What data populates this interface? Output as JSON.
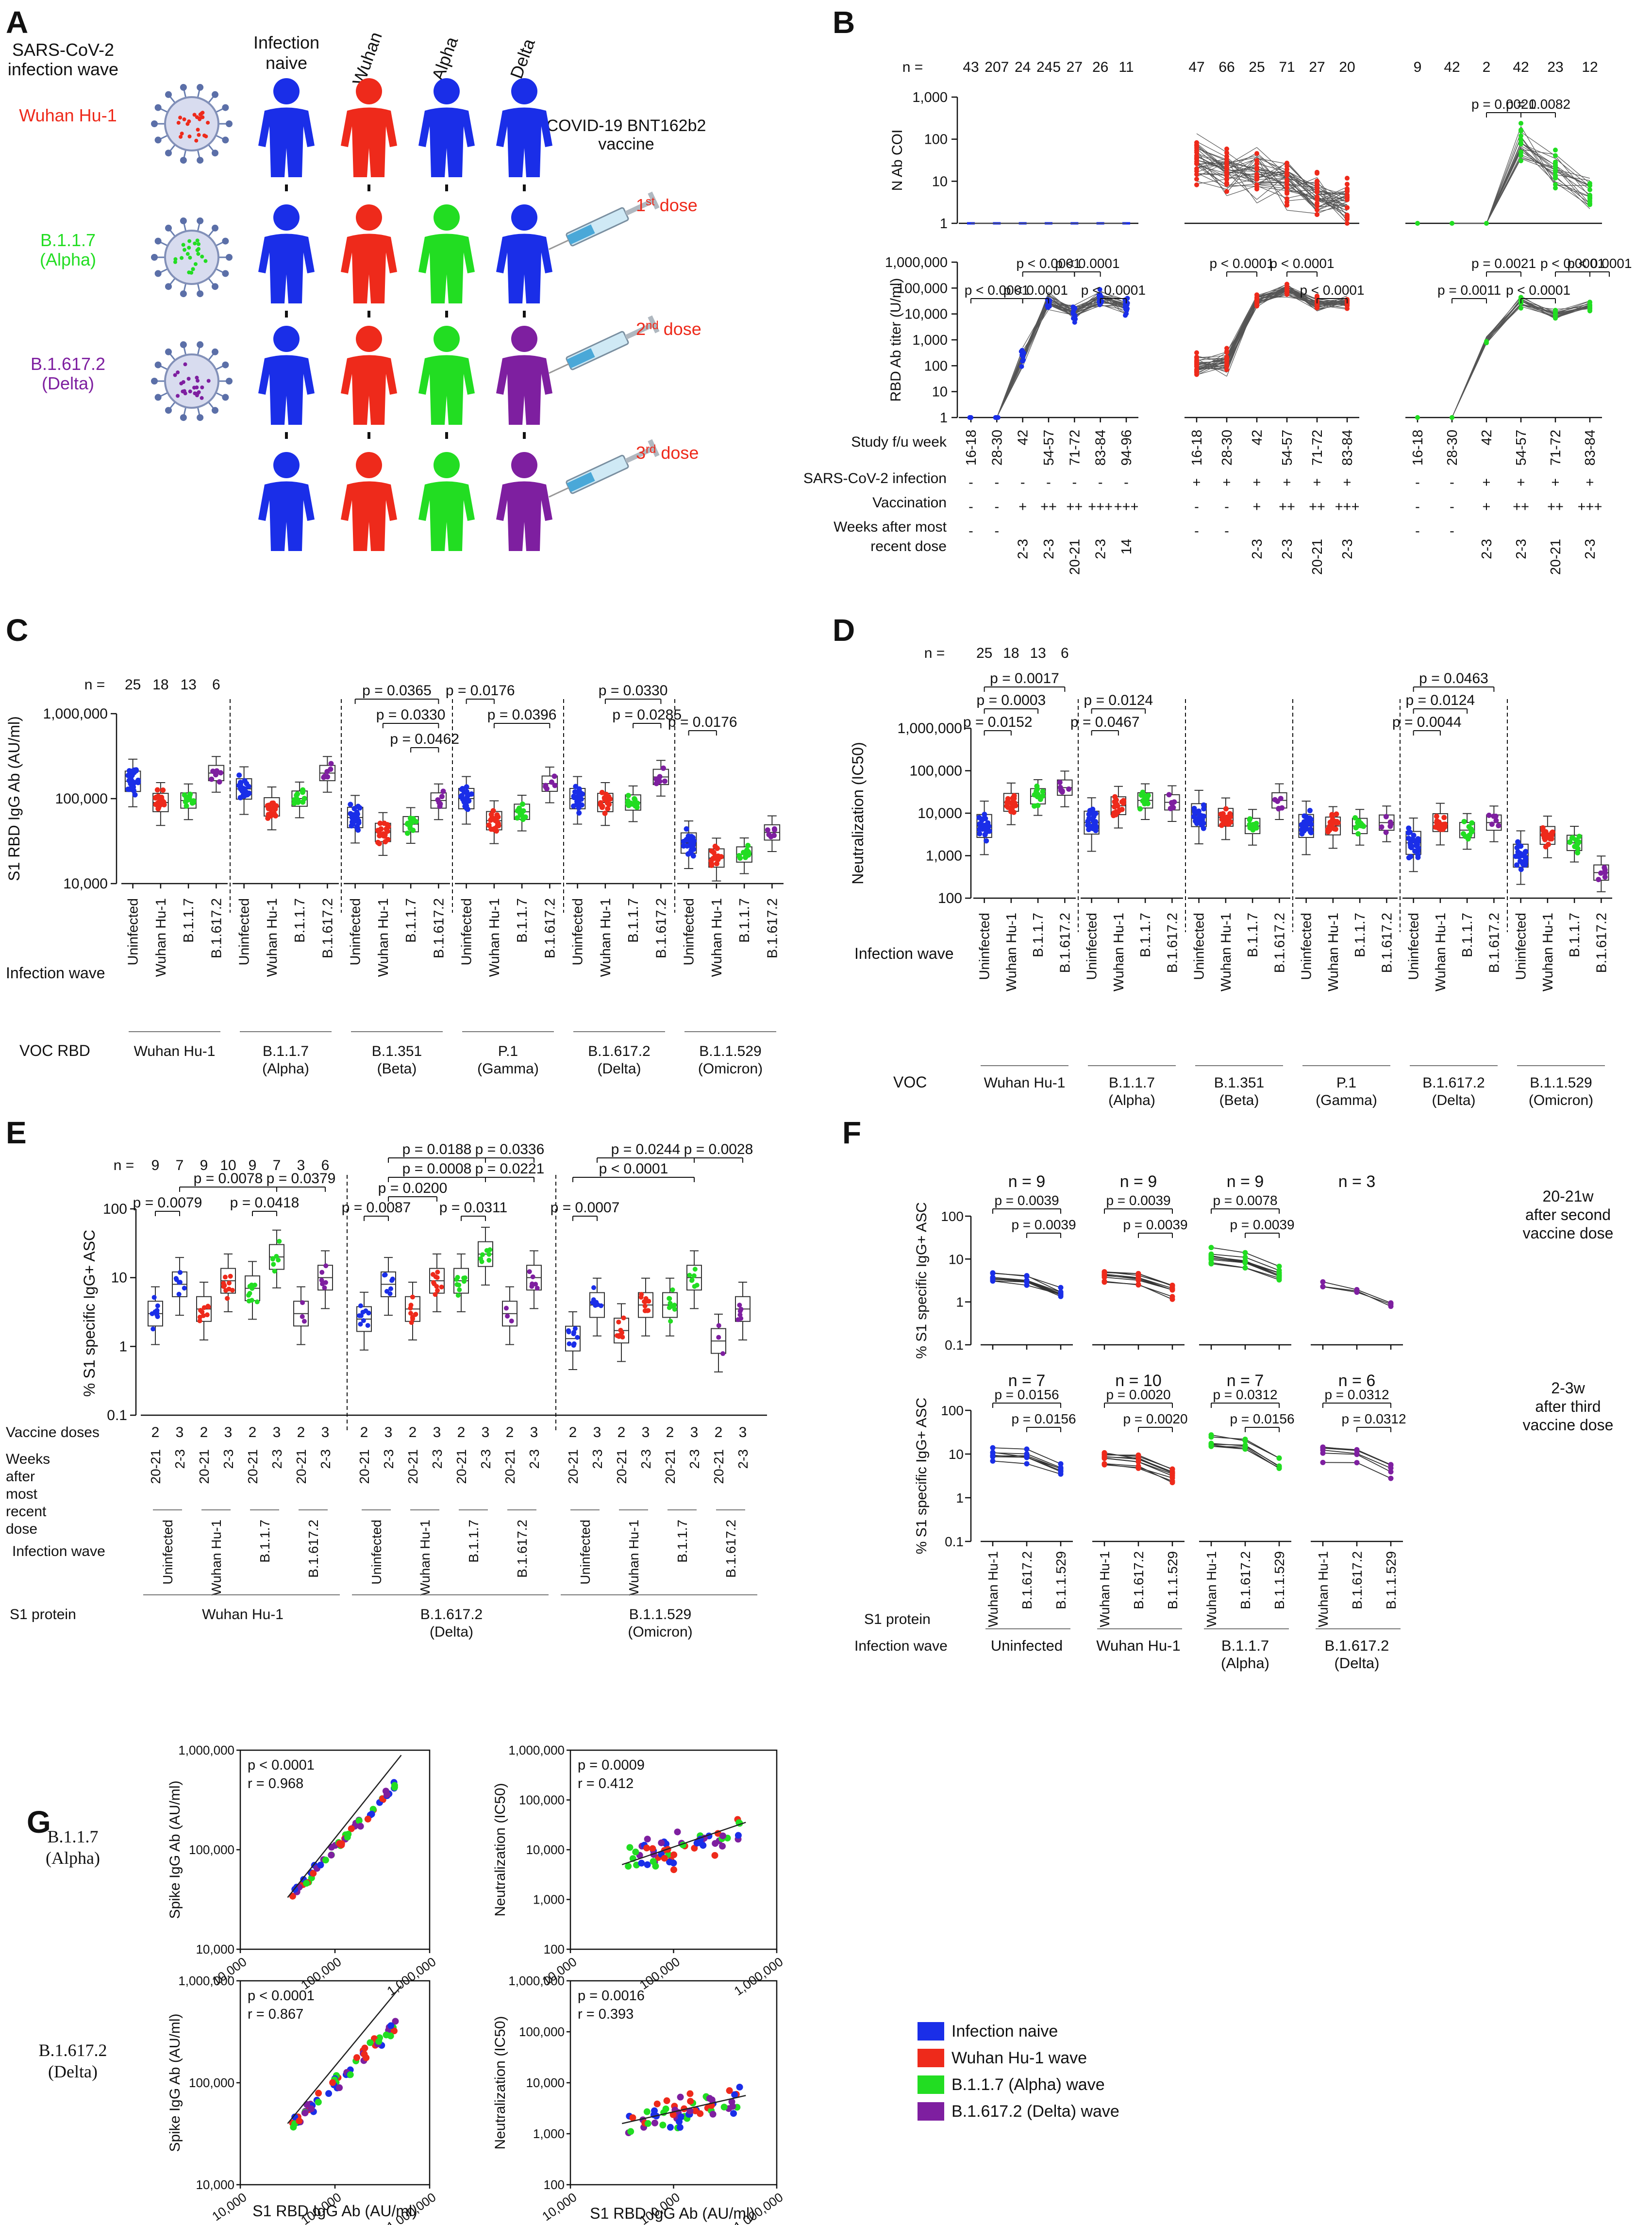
{
  "colors": {
    "naive": "#1a2ee8",
    "wuhan": "#ee2a1b",
    "alpha": "#22dd22",
    "delta": "#7e1fa0",
    "line": "#555555"
  },
  "panelA": {
    "letter": "A",
    "wave_header": "SARS-CoV-2\ninfection wave",
    "col_headers": [
      "Infection\nnaive",
      "Wuhan",
      "Alpha",
      "Delta"
    ],
    "vaccine_label": "COVID-19 BNT162b2\nvaccine",
    "variants": [
      {
        "name": "Wuhan Hu-1",
        "color": "#ee2a1b"
      },
      {
        "name": "B.1.1.7\n(Alpha)",
        "color": "#22dd22"
      },
      {
        "name": "B.1.617.2\n(Delta)",
        "color": "#7e1fa0"
      }
    ],
    "doses": [
      {
        "n": "1",
        "sup": "st",
        "text": " dose"
      },
      {
        "n": "2",
        "sup": "nd",
        "text": " dose"
      },
      {
        "n": "3",
        "sup": "rd",
        "text": " dose"
      }
    ],
    "icon_names": [
      "virus-icon",
      "person-icon",
      "syringe-icon"
    ]
  },
  "panelB": {
    "letter": "B",
    "n_label": "n =",
    "top_ylabel": "N Ab COI",
    "bottom_ylabel": "RBD Ab titer (U/ml)",
    "top_ticks": [
      "1,000",
      "100",
      "10",
      "1"
    ],
    "bottom_ticks": [
      "1,000,000",
      "100,000",
      "10,000",
      "1,000",
      "100",
      "10",
      "1"
    ],
    "row_labels": [
      "Study f/u week",
      "SARS-CoV-2 infection",
      "Vaccination",
      "Weeks after most\nrecent dose"
    ],
    "groups": [
      {
        "color": "#1a2ee8",
        "n": [
          "43",
          "207",
          "24",
          "245",
          "27",
          "26",
          "11"
        ],
        "weeks": [
          "16-18",
          "28-30",
          "42",
          "54-57",
          "71-72",
          "83-84",
          "94-96"
        ],
        "infection": [
          "-",
          "-",
          "-",
          "-",
          "-",
          "-",
          "-"
        ],
        "vaccination": [
          "-",
          "-",
          "+",
          "++",
          "++",
          "+++",
          "+++"
        ],
        "after": [
          "-",
          "-",
          "2-3",
          "2-3",
          "20-21",
          "2-3",
          "14"
        ],
        "top_pvals": [],
        "bottom_pvals": [
          "p < 0.0001",
          "p < 0.0001",
          "p < 0.0001",
          "p < 0.0001",
          "p < 0.0001"
        ]
      },
      {
        "color": "#ee2a1b",
        "n": [
          "47",
          "66",
          "25",
          "71",
          "27",
          "20"
        ],
        "weeks": [
          "16-18",
          "28-30",
          "42",
          "54-57",
          "71-72",
          "83-84"
        ],
        "infection": [
          "+",
          "+",
          "+",
          "+",
          "+",
          "+"
        ],
        "vaccination": [
          "-",
          "-",
          "+",
          "++",
          "++",
          "+++"
        ],
        "after": [
          "-",
          "-",
          "2-3",
          "2-3",
          "20-21",
          "2-3"
        ],
        "top_pvals": [],
        "bottom_pvals": [
          "p < 0.0001",
          "p < 0.0001",
          "p < 0.0001"
        ]
      },
      {
        "color": "#22dd22",
        "n": [
          "9",
          "42",
          "2",
          "42",
          "23",
          "12"
        ],
        "weeks": [
          "16-18",
          "28-30",
          "42",
          "54-57",
          "71-72",
          "83-84"
        ],
        "infection": [
          "-",
          "-",
          "+",
          "+",
          "+",
          "+"
        ],
        "vaccination": [
          "-",
          "-",
          "+",
          "++",
          "++",
          "+++"
        ],
        "after": [
          "-",
          "-",
          "2-3",
          "2-3",
          "20-21",
          "2-3"
        ],
        "top_pvals": [
          "p = 0.0021",
          "p = 0.0082"
        ],
        "bottom_pvals": [
          "p = 0.0021",
          "p < 0.0001",
          "p = 0.0011",
          "p < 0.0001",
          "p < 0.0001"
        ]
      }
    ]
  },
  "panelC": {
    "letter": "C",
    "ylabel": "S1 RBD IgG Ab (AU/ml)",
    "ticks": [
      "1,000,000",
      "100,000",
      "10,000"
    ],
    "n_label": "n =",
    "n": [
      "25",
      "18",
      "13",
      "6"
    ],
    "categories": [
      "Uninfected",
      "Wuhan Hu-1",
      "B.1.1.7",
      "B.1.617.2"
    ],
    "row_label": "Infection wave",
    "group_title": "VOC RBD",
    "groups": [
      "Wuhan Hu-1",
      "B.1.1.7\n(Alpha)",
      "B.1.351\n(Beta)",
      "P.1\n(Gamma)",
      "B.1.617.2\n(Delta)",
      "B.1.1.529\n(Omicron)"
    ],
    "pvals": [
      "p = 0.0365",
      "p = 0.0330",
      "p = 0.0462",
      "p = 0.0176",
      "p = 0.0396",
      "p = 0.0330",
      "p = 0.0285",
      "p = 0.0176"
    ]
  },
  "panelD": {
    "letter": "D",
    "ylabel": "Neutralization (IC50)",
    "ticks": [
      "1,000,000",
      "100,000",
      "10,000",
      "1,000",
      "100"
    ],
    "n_label": "n =",
    "n": [
      "25",
      "18",
      "13",
      "6"
    ],
    "categories": [
      "Uninfected",
      "Wuhan Hu-1",
      "B.1.1.7",
      "B.1.617.2"
    ],
    "row_label": "Infection wave",
    "group_title": "VOC",
    "groups": [
      "Wuhan Hu-1",
      "B.1.1.7\n(Alpha)",
      "B.1.351\n(Beta)",
      "P.1\n(Gamma)",
      "B.1.617.2\n(Delta)",
      "B.1.1.529\n(Omicron)"
    ],
    "pvals": [
      "p = 0.0017",
      "p = 0.0003",
      "p = 0.0152",
      "p = 0.0124",
      "p = 0.0467",
      "p = 0.0463",
      "p = 0.0124",
      "p = 0.0044"
    ]
  },
  "panelE": {
    "letter": "E",
    "ylabel": "% S1 specific IgG+ ASC",
    "ticks": [
      "100",
      "10",
      "1",
      "0.1"
    ],
    "n_label": "n =",
    "n": [
      "9",
      "7",
      "9",
      "10",
      "9",
      "7",
      "3",
      "6"
    ],
    "doses_label": "Vaccine doses",
    "doses": [
      "2",
      "3",
      "2",
      "3",
      "2",
      "3",
      "2",
      "3"
    ],
    "weeks_label": "Weeks\nafter\nmost\nrecent\ndose",
    "weeks": [
      "20-21",
      "2-3",
      "20-21",
      "2-3",
      "20-21",
      "2-3",
      "20-21",
      "2-3"
    ],
    "wave_label": "Infection wave",
    "waves": [
      "Uninfected",
      "Wuhan Hu-1",
      "B.1.1.7",
      "B.1.617.2"
    ],
    "protein_label": "S1 protein",
    "proteins": [
      "Wuhan Hu-1",
      "B.1.617.2\n(Delta)",
      "B.1.1.529\n(Omicron)"
    ],
    "pvals": [
      "p = 0.0078",
      "p = 0.0379",
      "p = 0.0079",
      "p = 0.0418",
      "p = 0.0188",
      "p = 0.0336",
      "p = 0.0008",
      "p = 0.0221",
      "p = 0.0200",
      "p = 0.0087",
      "p = 0.0311",
      "p = 0.0244",
      "p = 0.0028",
      "p < 0.0001",
      "p = 0.0007"
    ]
  },
  "panelF": {
    "letter": "F",
    "ylabel": "% S1 specific IgG+ ASC",
    "ticks": [
      "100",
      "10",
      "1",
      "0.1"
    ],
    "row_notes": [
      "20-21w\nafter second\nvaccine dose",
      "2-3w\nafter third\nvaccine dose"
    ],
    "top_n": [
      "n = 9",
      "n = 9",
      "n = 9",
      "n = 3"
    ],
    "bottom_n": [
      "n = 7",
      "n = 10",
      "n = 7",
      "n = 6"
    ],
    "top_pvals": [
      "p = 0.0039",
      "p = 0.0039",
      "p = 0.0039",
      "p = 0.0039",
      "p = 0.0078",
      "p = 0.0039"
    ],
    "bottom_pvals": [
      "p = 0.0156",
      "p = 0.0156",
      "p = 0.0020",
      "p = 0.0020",
      "p = 0.0312",
      "p = 0.0156",
      "p = 0.0312",
      "p = 0.0312"
    ],
    "protein_label": "S1 protein",
    "proteins": [
      "Wuhan Hu-1",
      "B.1.617.2",
      "B.1.1.529"
    ],
    "wave_label": "Infection wave",
    "waves": [
      "Uninfected",
      "Wuhan Hu-1",
      "B.1.1.7\n(Alpha)",
      "B.1.617.2\n(Delta)"
    ]
  },
  "panelG": {
    "letter": "G",
    "row_labels": [
      "B.1.1.7\n(Alpha)",
      "B.1.617.2\n(Delta)"
    ],
    "xlabel": "S1 RBD IgG Ab (AU/ml)",
    "xticks": [
      "10,000",
      "100,000",
      "1,000,000"
    ],
    "plots": [
      {
        "ylabel": "Spike IgG Ab (AU/ml)",
        "yticks": [
          "1,000,000",
          "100,000",
          "10,000"
        ],
        "p": "p < 0.0001",
        "r": "r = 0.968"
      },
      {
        "ylabel": "Neutralization (IC50)",
        "yticks": [
          "1,000,000",
          "100,000",
          "10,000",
          "1,000",
          "100"
        ],
        "p": "p = 0.0009",
        "r": "r = 0.412"
      },
      {
        "ylabel": "Spike IgG Ab (AU/ml)",
        "yticks": [
          "1,000,000",
          "100,000",
          "10,000"
        ],
        "p": "p < 0.0001",
        "r": "r = 0.867"
      },
      {
        "ylabel": "Neutralization (IC50)",
        "yticks": [
          "1,000,000",
          "100,000",
          "10,000",
          "1,000",
          "100"
        ],
        "p": "p = 0.0016",
        "r": "r = 0.393"
      }
    ],
    "legend": [
      {
        "label": "Infection naive",
        "color": "#1a2ee8"
      },
      {
        "label": "Wuhan Hu-1 wave",
        "color": "#ee2a1b"
      },
      {
        "label": "B.1.1.7 (Alpha) wave",
        "color": "#22dd22"
      },
      {
        "label": "B.1.617.2 (Delta) wave",
        "color": "#7e1fa0"
      }
    ]
  },
  "chart_data": [
    {
      "type": "scatter",
      "panel": "C",
      "ylabel": "S1 RBD IgG Ab (AU/ml)",
      "ylim": [
        10000,
        1000000
      ],
      "y_scale": "log",
      "categories": [
        "Uninfected",
        "Wuhan Hu-1",
        "B.1.1.7",
        "B.1.617.2"
      ],
      "groups": [
        "Wuhan Hu-1",
        "B.1.1.7",
        "B.1.351",
        "P.1",
        "B.1.617.2",
        "B.1.1.529"
      ],
      "medians": [
        [
          160000,
          90000,
          95000,
          200000
        ],
        [
          130000,
          80000,
          100000,
          200000
        ],
        [
          60000,
          40000,
          50000,
          95000
        ],
        [
          100000,
          55000,
          70000,
          150000
        ],
        [
          100000,
          90000,
          90000,
          180000
        ],
        [
          30000,
          20000,
          22000,
          40000
        ]
      ]
    },
    {
      "type": "scatter",
      "panel": "D",
      "ylabel": "Neutralization (IC50)",
      "ylim": [
        100,
        1000000
      ],
      "y_scale": "log",
      "categories": [
        "Uninfected",
        "Wuhan Hu-1",
        "B.1.1.7",
        "B.1.617.2"
      ],
      "groups": [
        "Wuhan Hu-1",
        "B.1.1.7",
        "B.1.351",
        "P.1",
        "B.1.617.2",
        "B.1.1.529"
      ],
      "medians": [
        [
          5000,
          18000,
          25000,
          40000
        ],
        [
          6000,
          15000,
          20000,
          18000
        ],
        [
          9000,
          8000,
          5000,
          20000
        ],
        [
          5000,
          5000,
          5000,
          6000
        ],
        [
          2000,
          6000,
          4000,
          6000
        ],
        [
          1000,
          3000,
          2000,
          400
        ]
      ]
    },
    {
      "type": "scatter",
      "panel": "E",
      "ylabel": "% S1 specific IgG+ ASC",
      "ylim": [
        0.1,
        100
      ],
      "y_scale": "log",
      "medians": [
        [
          3,
          8,
          3.5,
          9,
          7,
          20,
          3,
          10
        ],
        [
          2.5,
          8,
          3.5,
          9,
          9,
          22,
          3,
          10
        ],
        [
          1.3,
          4,
          1.7,
          4,
          4,
          10,
          1.2,
          3.5
        ]
      ]
    },
    {
      "type": "line",
      "panel": "F",
      "ylabel": "% S1 specific IgG+ ASC",
      "ylim": [
        0.1,
        100
      ],
      "y_scale": "log",
      "top_medians": [
        [
          3.5,
          3,
          1.5
        ],
        [
          4,
          3.5,
          1.8
        ],
        [
          10,
          8,
          4
        ],
        [
          2.5,
          2,
          1
        ]
      ],
      "bottom_medians": [
        [
          9,
          8,
          4
        ],
        [
          7,
          6,
          3
        ],
        [
          15,
          13,
          5
        ],
        [
          10,
          9,
          4
        ]
      ]
    },
    {
      "type": "scatter",
      "panel": "G",
      "xlabel": "S1 RBD IgG Ab (AU/ml)",
      "xlim": [
        10000,
        1000000
      ],
      "x_scale": "log",
      "series": [
        {
          "name": "Infection naive"
        },
        {
          "name": "Wuhan Hu-1 wave"
        },
        {
          "name": "B.1.1.7 (Alpha) wave"
        },
        {
          "name": "B.1.617.2 (Delta) wave"
        }
      ]
    }
  ]
}
